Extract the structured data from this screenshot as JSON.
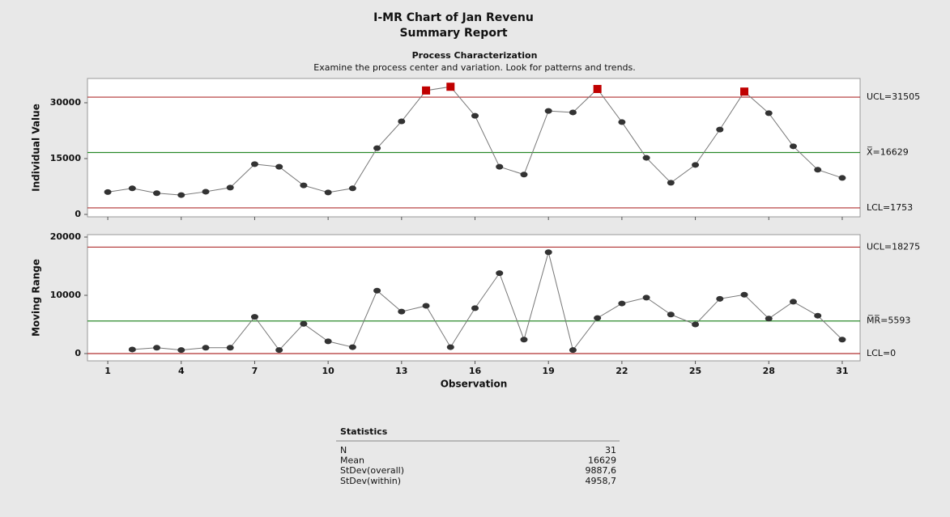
{
  "header": {
    "title": "I-MR Chart of Jan Revenu",
    "subtitle": "Summary Report",
    "section": "Process Characterization",
    "note": "Examine the process center and variation. Look for patterns and trends."
  },
  "chart_data": [
    {
      "type": "line",
      "ylabel": "Individual Value",
      "x": [
        1,
        2,
        3,
        4,
        5,
        6,
        7,
        8,
        9,
        10,
        11,
        12,
        13,
        14,
        15,
        16,
        17,
        18,
        19,
        20,
        21,
        22,
        23,
        24,
        25,
        26,
        27,
        28,
        29,
        30,
        31
      ],
      "series": [
        {
          "name": "Individual Value",
          "color": "#333333",
          "alert_color": "#c00000",
          "values": [
            6000,
            7000,
            5700,
            5200,
            6100,
            7200,
            13500,
            12800,
            7800,
            5900,
            7000,
            17800,
            25000,
            33300,
            34300,
            26500,
            12800,
            10700,
            27800,
            27400,
            33700,
            24800,
            15200,
            8500,
            13300,
            22800,
            33000,
            27200,
            18300,
            12000,
            9800
          ]
        }
      ],
      "xlim": [
        0.17,
        31.73
      ],
      "xticks": [
        1,
        4,
        7,
        10,
        13,
        16,
        19,
        22,
        25,
        28,
        31
      ],
      "ylim": [
        -652,
        36522
      ],
      "yticks": [
        0,
        15000,
        30000
      ],
      "control_lines": [
        {
          "value": 31505,
          "label": "UCL=31505",
          "color": "#b03030",
          "limit": true
        },
        {
          "value": 16629,
          "label": "X̅=16629",
          "color": "#2a8a2a"
        },
        {
          "value": 1753,
          "label": "LCL=1753",
          "color": "#b03030",
          "limit": true
        }
      ]
    },
    {
      "type": "line",
      "ylabel": "Moving Range",
      "xlabel": "Observation",
      "x": [
        1,
        2,
        3,
        4,
        5,
        6,
        7,
        8,
        9,
        10,
        11,
        12,
        13,
        14,
        15,
        16,
        17,
        18,
        19,
        20,
        21,
        22,
        23,
        24,
        25,
        26,
        27,
        28,
        29,
        30,
        31
      ],
      "series": [
        {
          "name": "Moving Range",
          "color": "#333333",
          "alert_color": "#c00000",
          "values": [
            null,
            700,
            1000,
            600,
            1000,
            1000,
            6300,
            600,
            5100,
            2100,
            1100,
            10800,
            7200,
            8200,
            1100,
            7800,
            13800,
            2400,
            17400,
            600,
            6100,
            8600,
            9600,
            6700,
            5000,
            9400,
            10100,
            6000,
            8900,
            6500,
            2400
          ]
        }
      ],
      "xlim": [
        0.17,
        31.73
      ],
      "xticks": [
        1,
        4,
        7,
        10,
        13,
        16,
        19,
        22,
        25,
        28,
        31
      ],
      "ylim": [
        -1250,
        20417
      ],
      "yticks": [
        0,
        10000,
        20000
      ],
      "control_lines": [
        {
          "value": 18275,
          "label": "UCL=18275",
          "color": "#b03030",
          "limit": true
        },
        {
          "value": 5593,
          "label": "M̅R̅=5593",
          "color": "#2a8a2a"
        },
        {
          "value": 0,
          "label": "LCL=0",
          "color": "#b03030",
          "limit": true
        }
      ]
    }
  ],
  "statistics": {
    "title": "Statistics",
    "rows": [
      [
        "N",
        "31"
      ],
      [
        "Mean",
        "16629"
      ],
      [
        "StDev(overall)",
        "9887,6"
      ],
      [
        "StDev(within)",
        "4958,7"
      ]
    ]
  }
}
